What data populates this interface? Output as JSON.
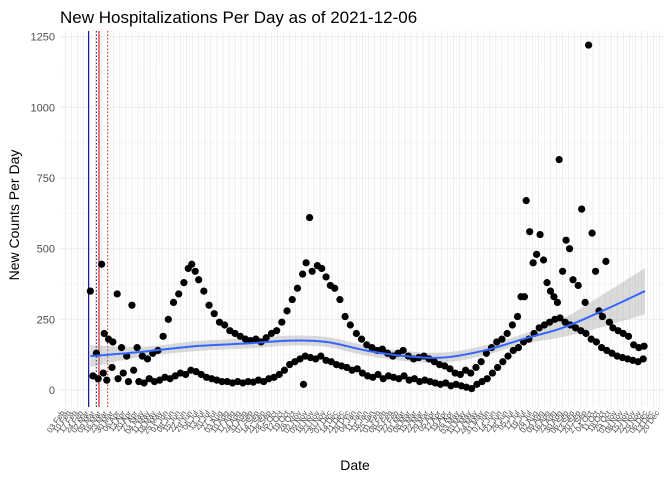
{
  "chart_data": {
    "type": "scatter",
    "title": "New Hospitalizations Per Day as of 2021-12-06",
    "xlabel": "Date",
    "ylabel": "New Counts Per Day",
    "x_range": [
      "2020-01-28",
      "2021-12-25"
    ],
    "ylim": [
      -60,
      1270
    ],
    "yticks": [
      0,
      250,
      500,
      750,
      1000,
      1250
    ],
    "grid": true,
    "legend": "none",
    "x_tick_labels": [
      "03 Feb",
      "10 Feb",
      "17 Feb",
      "24 Feb",
      "02 Mar",
      "09 Mar",
      "16 Mar",
      "23 Mar",
      "30 Mar",
      "06 Apr",
      "13 Apr",
      "20 Apr",
      "27 Apr",
      "04 May",
      "11 May",
      "18 May",
      "25 May",
      "01 Jun",
      "08 Jun",
      "15 Jun",
      "22 Jun",
      "29 Jun",
      "06 Jul",
      "13 Jul",
      "20 Jul",
      "27 Jul",
      "03 Aug",
      "10 Aug",
      "17 Aug",
      "24 Aug",
      "31 Aug",
      "07 Sep",
      "14 Sep",
      "21 Sep",
      "28 Sep",
      "05 Oct",
      "12 Oct",
      "19 Oct",
      "26 Oct",
      "02 Nov",
      "09 Nov",
      "16 Nov",
      "23 Nov",
      "30 Nov",
      "07 Dec",
      "14 Dec",
      "21 Dec",
      "28 Dec",
      "04 Jan",
      "11 Jan",
      "18 Jan",
      "25 Jan",
      "01 Feb",
      "08 Feb",
      "15 Feb",
      "22 Feb",
      "01 Mar",
      "08 Mar",
      "15 Mar",
      "22 Mar",
      "29 Mar",
      "05 Apr",
      "12 Apr",
      "19 Apr",
      "26 Apr",
      "03 May",
      "10 May",
      "17 May",
      "24 May",
      "31 May",
      "07 Jun",
      "14 Jun",
      "21 Jun",
      "28 Jun",
      "05 Jul",
      "12 Jul",
      "19 Jul",
      "26 Jul",
      "02 Aug",
      "09 Aug",
      "16 Aug",
      "23 Aug",
      "30 Aug",
      "06 Sep",
      "13 Sep",
      "20 Sep",
      "27 Sep",
      "04 Oct",
      "11 Oct",
      "18 Oct",
      "25 Oct",
      "01 Nov",
      "08 Nov",
      "15 Nov",
      "22 Nov",
      "29 Nov",
      "06 Dec",
      "13 Dec",
      "20 Dec"
    ],
    "reference_lines": [
      {
        "date": "2020-03-01",
        "style": "solid",
        "color": "#1b1b9e"
      },
      {
        "date": "2020-03-10",
        "style": "dotted",
        "color": "#1b1b9e"
      },
      {
        "date": "2020-03-13",
        "style": "solid",
        "color": "#cc2222"
      },
      {
        "date": "2020-03-23",
        "style": "dotted",
        "color": "#cc2222"
      }
    ],
    "series": [
      {
        "type": "upper",
        "points": [
          [
            "2020-03-03",
            350
          ],
          [
            "2020-03-10",
            130
          ],
          [
            "2020-03-16",
            445
          ],
          [
            "2020-03-19",
            200
          ],
          [
            "2020-03-24",
            180
          ],
          [
            "2020-03-29",
            170
          ],
          [
            "2020-04-03",
            340
          ],
          [
            "2020-04-08",
            150
          ],
          [
            "2020-04-14",
            120
          ],
          [
            "2020-04-20",
            300
          ],
          [
            "2020-04-26",
            150
          ],
          [
            "2020-05-02",
            120
          ],
          [
            "2020-05-08",
            110
          ],
          [
            "2020-05-14",
            130
          ],
          [
            "2020-05-20",
            140
          ],
          [
            "2020-05-26",
            190
          ],
          [
            "2020-06-01",
            250
          ],
          [
            "2020-06-07",
            310
          ],
          [
            "2020-06-13",
            340
          ],
          [
            "2020-06-19",
            380
          ],
          [
            "2020-06-24",
            430
          ],
          [
            "2020-06-28",
            445
          ],
          [
            "2020-07-02",
            420
          ],
          [
            "2020-07-06",
            390
          ],
          [
            "2020-07-12",
            350
          ],
          [
            "2020-07-18",
            300
          ],
          [
            "2020-07-24",
            270
          ],
          [
            "2020-07-30",
            240
          ],
          [
            "2020-08-05",
            230
          ],
          [
            "2020-08-11",
            210
          ],
          [
            "2020-08-17",
            200
          ],
          [
            "2020-08-23",
            190
          ],
          [
            "2020-08-29",
            180
          ],
          [
            "2020-09-04",
            175
          ],
          [
            "2020-09-10",
            180
          ],
          [
            "2020-09-16",
            170
          ],
          [
            "2020-09-22",
            185
          ],
          [
            "2020-09-28",
            200
          ],
          [
            "2020-10-04",
            210
          ],
          [
            "2020-10-10",
            240
          ],
          [
            "2020-10-16",
            280
          ],
          [
            "2020-10-22",
            320
          ],
          [
            "2020-10-28",
            360
          ],
          [
            "2020-11-03",
            410
          ],
          [
            "2020-11-07",
            450
          ],
          [
            "2020-11-11",
            610
          ],
          [
            "2020-11-14",
            420
          ],
          [
            "2020-11-20",
            440
          ],
          [
            "2020-11-25",
            430
          ],
          [
            "2020-11-30",
            400
          ],
          [
            "2020-12-05",
            370
          ],
          [
            "2020-12-10",
            360
          ],
          [
            "2020-12-16",
            320
          ],
          [
            "2020-12-22",
            260
          ],
          [
            "2020-12-28",
            230
          ],
          [
            "2021-01-04",
            200
          ],
          [
            "2021-01-10",
            180
          ],
          [
            "2021-01-16",
            160
          ],
          [
            "2021-01-22",
            150
          ],
          [
            "2021-01-28",
            140
          ],
          [
            "2021-02-03",
            145
          ],
          [
            "2021-02-09",
            130
          ],
          [
            "2021-02-15",
            120
          ],
          [
            "2021-02-21",
            130
          ],
          [
            "2021-02-27",
            140
          ],
          [
            "2021-03-05",
            120
          ],
          [
            "2021-03-11",
            110
          ],
          [
            "2021-03-17",
            115
          ],
          [
            "2021-03-23",
            120
          ],
          [
            "2021-03-29",
            110
          ],
          [
            "2021-04-04",
            100
          ],
          [
            "2021-04-10",
            90
          ],
          [
            "2021-04-16",
            85
          ],
          [
            "2021-04-22",
            75
          ],
          [
            "2021-04-28",
            60
          ],
          [
            "2021-05-04",
            55
          ],
          [
            "2021-05-10",
            70
          ],
          [
            "2021-05-16",
            60
          ],
          [
            "2021-05-22",
            80
          ],
          [
            "2021-05-28",
            100
          ],
          [
            "2021-06-03",
            130
          ],
          [
            "2021-06-09",
            150
          ],
          [
            "2021-06-15",
            170
          ],
          [
            "2021-06-21",
            180
          ],
          [
            "2021-06-27",
            200
          ],
          [
            "2021-07-03",
            230
          ],
          [
            "2021-07-09",
            260
          ],
          [
            "2021-07-13",
            330
          ],
          [
            "2021-07-17",
            330
          ],
          [
            "2021-07-19",
            670
          ],
          [
            "2021-07-23",
            560
          ],
          [
            "2021-07-27",
            450
          ],
          [
            "2021-07-31",
            480
          ],
          [
            "2021-08-04",
            550
          ],
          [
            "2021-08-08",
            460
          ],
          [
            "2021-08-12",
            380
          ],
          [
            "2021-08-16",
            350
          ],
          [
            "2021-08-20",
            330
          ],
          [
            "2021-08-24",
            310
          ],
          [
            "2021-08-26",
            815
          ],
          [
            "2021-08-30",
            420
          ],
          [
            "2021-09-03",
            530
          ],
          [
            "2021-09-07",
            500
          ],
          [
            "2021-09-11",
            390
          ],
          [
            "2021-09-17",
            370
          ],
          [
            "2021-09-21",
            640
          ],
          [
            "2021-09-25",
            310
          ],
          [
            "2021-09-29",
            1220
          ],
          [
            "2021-10-03",
            555
          ],
          [
            "2021-10-07",
            420
          ],
          [
            "2021-10-11",
            280
          ],
          [
            "2021-10-15",
            260
          ],
          [
            "2021-10-19",
            455
          ],
          [
            "2021-10-23",
            240
          ],
          [
            "2021-10-27",
            220
          ],
          [
            "2021-11-02",
            210
          ],
          [
            "2021-11-08",
            200
          ],
          [
            "2021-11-14",
            190
          ],
          [
            "2021-11-20",
            160
          ],
          [
            "2021-11-26",
            150
          ],
          [
            "2021-12-02",
            155
          ]
        ]
      },
      {
        "type": "lower",
        "points": [
          [
            "2020-03-06",
            50
          ],
          [
            "2020-03-12",
            40
          ],
          [
            "2020-03-18",
            60
          ],
          [
            "2020-03-22",
            35
          ],
          [
            "2020-03-28",
            80
          ],
          [
            "2020-04-04",
            40
          ],
          [
            "2020-04-10",
            60
          ],
          [
            "2020-04-16",
            30
          ],
          [
            "2020-04-22",
            70
          ],
          [
            "2020-04-28",
            30
          ],
          [
            "2020-05-04",
            25
          ],
          [
            "2020-05-10",
            40
          ],
          [
            "2020-05-16",
            30
          ],
          [
            "2020-05-22",
            35
          ],
          [
            "2020-05-28",
            45
          ],
          [
            "2020-06-03",
            40
          ],
          [
            "2020-06-09",
            50
          ],
          [
            "2020-06-15",
            60
          ],
          [
            "2020-06-21",
            55
          ],
          [
            "2020-06-27",
            70
          ],
          [
            "2020-07-03",
            65
          ],
          [
            "2020-07-09",
            55
          ],
          [
            "2020-07-15",
            45
          ],
          [
            "2020-07-21",
            40
          ],
          [
            "2020-07-27",
            35
          ],
          [
            "2020-08-02",
            30
          ],
          [
            "2020-08-08",
            30
          ],
          [
            "2020-08-14",
            25
          ],
          [
            "2020-08-20",
            30
          ],
          [
            "2020-08-26",
            25
          ],
          [
            "2020-09-01",
            30
          ],
          [
            "2020-09-07",
            28
          ],
          [
            "2020-09-13",
            35
          ],
          [
            "2020-09-19",
            30
          ],
          [
            "2020-09-25",
            40
          ],
          [
            "2020-10-01",
            45
          ],
          [
            "2020-10-07",
            55
          ],
          [
            "2020-10-13",
            70
          ],
          [
            "2020-10-19",
            90
          ],
          [
            "2020-10-25",
            100
          ],
          [
            "2020-10-31",
            110
          ],
          [
            "2020-11-04",
            20
          ],
          [
            "2020-11-06",
            120
          ],
          [
            "2020-11-12",
            115
          ],
          [
            "2020-11-18",
            110
          ],
          [
            "2020-11-24",
            120
          ],
          [
            "2020-11-30",
            105
          ],
          [
            "2020-12-06",
            100
          ],
          [
            "2020-12-12",
            90
          ],
          [
            "2020-12-18",
            85
          ],
          [
            "2020-12-24",
            80
          ],
          [
            "2020-12-30",
            70
          ],
          [
            "2021-01-05",
            75
          ],
          [
            "2021-01-11",
            60
          ],
          [
            "2021-01-17",
            50
          ],
          [
            "2021-01-23",
            45
          ],
          [
            "2021-01-29",
            55
          ],
          [
            "2021-02-04",
            40
          ],
          [
            "2021-02-10",
            50
          ],
          [
            "2021-02-16",
            45
          ],
          [
            "2021-02-22",
            40
          ],
          [
            "2021-02-28",
            50
          ],
          [
            "2021-03-06",
            35
          ],
          [
            "2021-03-12",
            40
          ],
          [
            "2021-03-18",
            30
          ],
          [
            "2021-03-24",
            35
          ],
          [
            "2021-03-30",
            30
          ],
          [
            "2021-04-05",
            25
          ],
          [
            "2021-04-11",
            20
          ],
          [
            "2021-04-17",
            25
          ],
          [
            "2021-04-23",
            15
          ],
          [
            "2021-04-29",
            20
          ],
          [
            "2021-05-05",
            15
          ],
          [
            "2021-05-11",
            10
          ],
          [
            "2021-05-17",
            5
          ],
          [
            "2021-05-23",
            20
          ],
          [
            "2021-05-29",
            30
          ],
          [
            "2021-06-04",
            40
          ],
          [
            "2021-06-10",
            60
          ],
          [
            "2021-06-16",
            80
          ],
          [
            "2021-06-22",
            100
          ],
          [
            "2021-06-28",
            120
          ],
          [
            "2021-07-04",
            140
          ],
          [
            "2021-07-10",
            150
          ],
          [
            "2021-07-16",
            170
          ],
          [
            "2021-07-22",
            180
          ],
          [
            "2021-07-28",
            200
          ],
          [
            "2021-08-03",
            220
          ],
          [
            "2021-08-09",
            230
          ],
          [
            "2021-08-15",
            240
          ],
          [
            "2021-08-21",
            250
          ],
          [
            "2021-08-27",
            255
          ],
          [
            "2021-09-02",
            240
          ],
          [
            "2021-09-08",
            230
          ],
          [
            "2021-09-14",
            220
          ],
          [
            "2021-09-20",
            210
          ],
          [
            "2021-09-26",
            200
          ],
          [
            "2021-10-02",
            180
          ],
          [
            "2021-10-08",
            170
          ],
          [
            "2021-10-14",
            150
          ],
          [
            "2021-10-20",
            140
          ],
          [
            "2021-10-26",
            130
          ],
          [
            "2021-11-01",
            120
          ],
          [
            "2021-11-07",
            115
          ],
          [
            "2021-11-13",
            110
          ],
          [
            "2021-11-19",
            105
          ],
          [
            "2021-11-25",
            100
          ],
          [
            "2021-12-01",
            110
          ]
        ]
      }
    ],
    "smooth": {
      "color": "#3366ff",
      "points": [
        [
          "2020-03-03",
          120
        ],
        [
          "2020-05-01",
          135
        ],
        [
          "2020-07-01",
          155
        ],
        [
          "2020-09-01",
          165
        ],
        [
          "2020-10-20",
          175
        ],
        [
          "2020-12-01",
          170
        ],
        [
          "2021-01-15",
          140
        ],
        [
          "2021-03-01",
          120
        ],
        [
          "2021-04-15",
          115
        ],
        [
          "2021-06-01",
          140
        ],
        [
          "2021-07-15",
          180
        ],
        [
          "2021-08-30",
          220
        ],
        [
          "2021-10-15",
          280
        ],
        [
          "2021-12-03",
          350
        ]
      ]
    }
  }
}
